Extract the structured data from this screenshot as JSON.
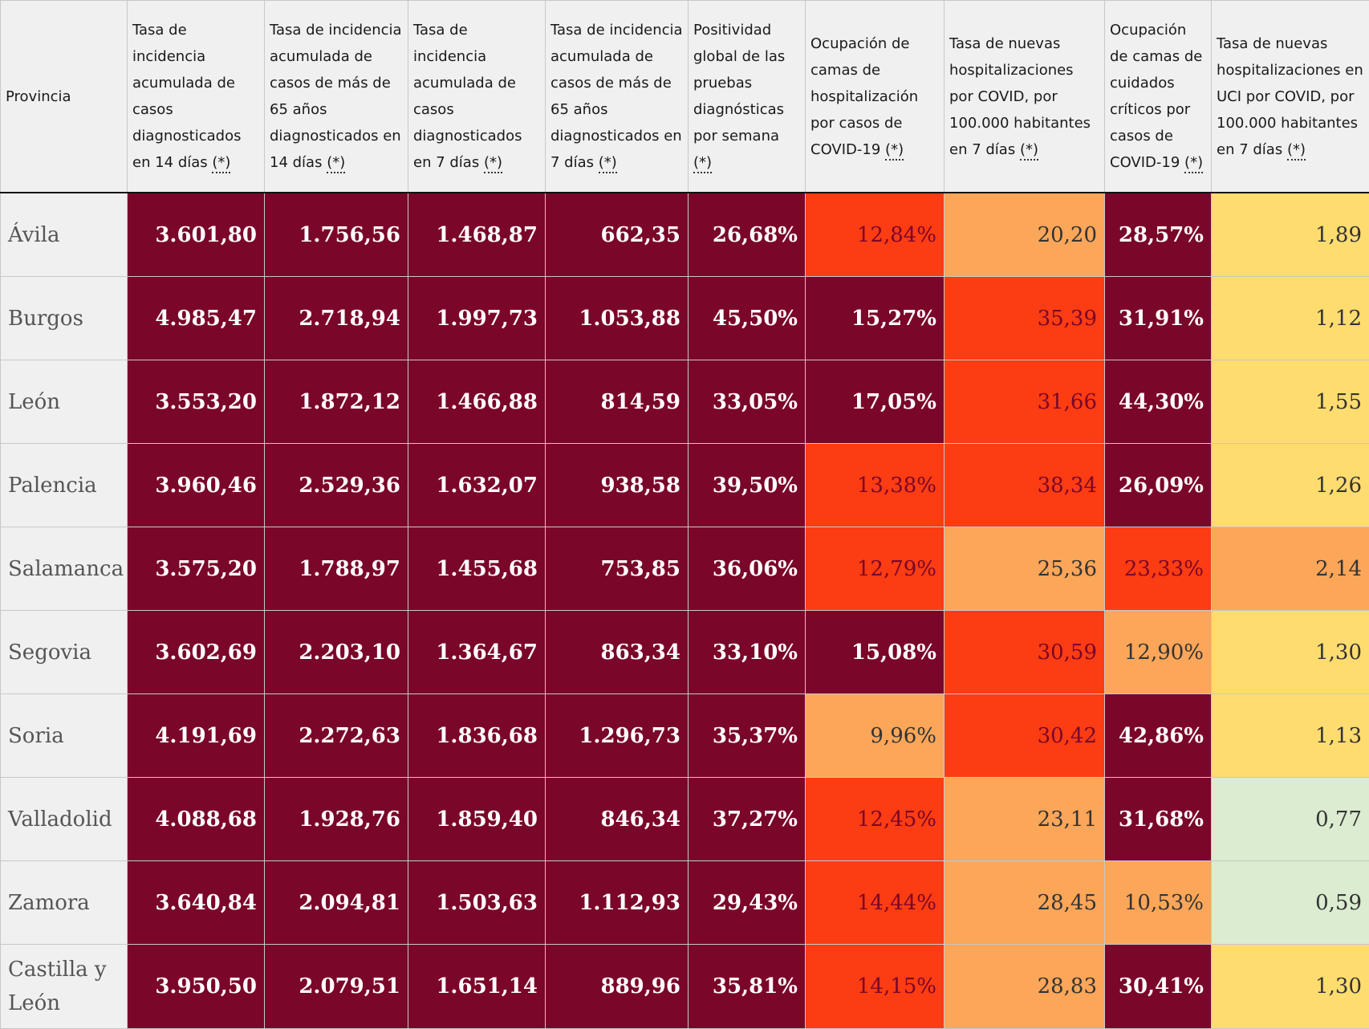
{
  "table": {
    "headers": [
      {
        "text": "Provincia",
        "asterisk": ""
      },
      {
        "text": "Tasa de incidencia acumulada de casos diagnosticados en 14 días",
        "asterisk": "(*)"
      },
      {
        "text": "Tasa de incidencia acumulada de casos de más de 65 años diagnosticados en 14 días",
        "asterisk": "(*)"
      },
      {
        "text": "Tasa de incidencia acumulada de casos diagnosticados en 7 días",
        "asterisk": "(*)"
      },
      {
        "text": "Tasa de incidencia acumulada de casos de más de 65 años diagnosticados en 7 días",
        "asterisk": "(*)"
      },
      {
        "text": "Positividad global de las pruebas diagnósticas por semana",
        "asterisk": "(*)"
      },
      {
        "text": "Ocupación de camas de hospitalización por casos de COVID-19",
        "asterisk": "(*)"
      },
      {
        "text": "Tasa de nuevas hospitalizaciones por COVID, por 100.000 habitantes en 7 días",
        "asterisk": "(*)"
      },
      {
        "text": "Ocupación de camas de cuidados críticos por casos de COVID-19",
        "asterisk": "(*)"
      },
      {
        "text": "Tasa de nuevas hospitalizaciones en UCI por COVID, por 100.000 habitantes en 7 días",
        "asterisk": "(*)"
      }
    ],
    "level_colors": {
      "dark": "#7a0629",
      "red": "#fc3c13",
      "orange": "#fca659",
      "yellow": "#ffdc70",
      "green": "#dbecd1",
      "header_bg": "#f0f0f0"
    },
    "rows": [
      {
        "provincia": "Ávila",
        "values": [
          "3.601,80",
          "1.756,56",
          "1.468,87",
          "662,35",
          "26,68%",
          "12,84%",
          "20,20",
          "28,57%",
          "1,89"
        ],
        "levels": [
          "dark",
          "dark",
          "dark",
          "dark",
          "dark",
          "red",
          "orange",
          "dark",
          "yellow"
        ]
      },
      {
        "provincia": "Burgos",
        "values": [
          "4.985,47",
          "2.718,94",
          "1.997,73",
          "1.053,88",
          "45,50%",
          "15,27%",
          "35,39",
          "31,91%",
          "1,12"
        ],
        "levels": [
          "dark",
          "dark",
          "dark",
          "dark",
          "dark",
          "dark",
          "red",
          "dark",
          "yellow"
        ]
      },
      {
        "provincia": "León",
        "values": [
          "3.553,20",
          "1.872,12",
          "1.466,88",
          "814,59",
          "33,05%",
          "17,05%",
          "31,66",
          "44,30%",
          "1,55"
        ],
        "levels": [
          "dark",
          "dark",
          "dark",
          "dark",
          "dark",
          "dark",
          "red",
          "dark",
          "yellow"
        ]
      },
      {
        "provincia": "Palencia",
        "values": [
          "3.960,46",
          "2.529,36",
          "1.632,07",
          "938,58",
          "39,50%",
          "13,38%",
          "38,34",
          "26,09%",
          "1,26"
        ],
        "levels": [
          "dark",
          "dark",
          "dark",
          "dark",
          "dark",
          "red",
          "red",
          "dark",
          "yellow"
        ]
      },
      {
        "provincia": "Salamanca",
        "values": [
          "3.575,20",
          "1.788,97",
          "1.455,68",
          "753,85",
          "36,06%",
          "12,79%",
          "25,36",
          "23,33%",
          "2,14"
        ],
        "levels": [
          "dark",
          "dark",
          "dark",
          "dark",
          "dark",
          "red",
          "orange",
          "red",
          "orange"
        ]
      },
      {
        "provincia": "Segovia",
        "values": [
          "3.602,69",
          "2.203,10",
          "1.364,67",
          "863,34",
          "33,10%",
          "15,08%",
          "30,59",
          "12,90%",
          "1,30"
        ],
        "levels": [
          "dark",
          "dark",
          "dark",
          "dark",
          "dark",
          "dark",
          "red",
          "orange",
          "yellow"
        ]
      },
      {
        "provincia": "Soria",
        "values": [
          "4.191,69",
          "2.272,63",
          "1.836,68",
          "1.296,73",
          "35,37%",
          "9,96%",
          "30,42",
          "42,86%",
          "1,13"
        ],
        "levels": [
          "dark",
          "dark",
          "dark",
          "dark",
          "dark",
          "orange",
          "red",
          "dark",
          "yellow"
        ]
      },
      {
        "provincia": "Valladolid",
        "values": [
          "4.088,68",
          "1.928,76",
          "1.859,40",
          "846,34",
          "37,27%",
          "12,45%",
          "23,11",
          "31,68%",
          "0,77"
        ],
        "levels": [
          "dark",
          "dark",
          "dark",
          "dark",
          "dark",
          "red",
          "orange",
          "dark",
          "green"
        ]
      },
      {
        "provincia": "Zamora",
        "values": [
          "3.640,84",
          "2.094,81",
          "1.503,63",
          "1.112,93",
          "29,43%",
          "14,44%",
          "28,45",
          "10,53%",
          "0,59"
        ],
        "levels": [
          "dark",
          "dark",
          "dark",
          "dark",
          "dark",
          "red",
          "orange",
          "orange",
          "green"
        ]
      },
      {
        "provincia": "Castilla y León",
        "values": [
          "3.950,50",
          "2.079,51",
          "1.651,14",
          "889,96",
          "35,81%",
          "14,15%",
          "28,83",
          "30,41%",
          "1,30"
        ],
        "levels": [
          "dark",
          "dark",
          "dark",
          "dark",
          "dark",
          "red",
          "orange",
          "dark",
          "yellow"
        ]
      }
    ]
  }
}
